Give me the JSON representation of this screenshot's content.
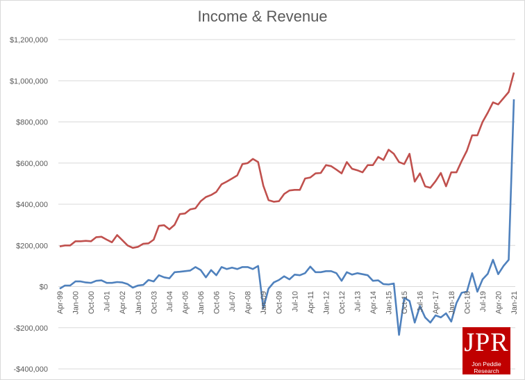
{
  "chart_data": {
    "type": "line",
    "title": "Income & Revenue",
    "xlabel": "",
    "ylabel": "",
    "ylim": [
      -400000,
      1200000
    ],
    "yticks": [
      -400000,
      -200000,
      0,
      200000,
      400000,
      600000,
      800000,
      1000000,
      1200000
    ],
    "ytick_labels": [
      "-$400,000",
      "-$200,000",
      "$0",
      "$200,000",
      "$400,000",
      "$600,000",
      "$800,000",
      "$1,000,000",
      "$1,200,000"
    ],
    "xtick_labels": [
      "Apr-99",
      "Jan-00",
      "Oct-00",
      "Jul-01",
      "Apr-02",
      "Jan-03",
      "Oct-03",
      "Jul-04",
      "Apr-05",
      "Jan-06",
      "Oct-06",
      "Jul-07",
      "Apr-08",
      "Jan-09",
      "Oct-09",
      "Jul-10",
      "Apr-11",
      "Jan-12",
      "Oct-12",
      "Jul-13",
      "Apr-14",
      "Jan-15",
      "Oct-15",
      "Jul-16",
      "Apr-17",
      "Jan-18",
      "Oct-18",
      "Jul-19",
      "Apr-20",
      "Jan-21"
    ],
    "grid": true,
    "series": [
      {
        "color": "#c0504d",
        "values": [
          195000,
          200000,
          200000,
          220000,
          220000,
          222000,
          220000,
          240000,
          242000,
          228000,
          215000,
          250000,
          225000,
          200000,
          188000,
          193000,
          208000,
          210000,
          228000,
          295000,
          298000,
          278000,
          300000,
          352000,
          355000,
          375000,
          380000,
          415000,
          435000,
          445000,
          460000,
          497000,
          510000,
          525000,
          540000,
          595000,
          600000,
          620000,
          605000,
          490000,
          420000,
          412000,
          415000,
          450000,
          467000,
          470000,
          470000,
          525000,
          530000,
          550000,
          552000,
          590000,
          585000,
          568000,
          550000,
          605000,
          572000,
          565000,
          555000,
          590000,
          590000,
          630000,
          615000,
          665000,
          645000,
          605000,
          595000,
          645000,
          510000,
          550000,
          487000,
          480000,
          512000,
          552000,
          487000,
          555000,
          555000,
          610000,
          660000,
          735000,
          735000,
          800000,
          845000,
          895000,
          885000,
          915000,
          945000,
          1040000
        ]
      },
      {
        "color": "#4f81bd",
        "values": [
          -10000,
          5000,
          5000,
          25000,
          25000,
          20000,
          18000,
          28000,
          30000,
          18000,
          18000,
          22000,
          20000,
          12000,
          -5000,
          5000,
          8000,
          32000,
          25000,
          55000,
          45000,
          40000,
          70000,
          72000,
          75000,
          78000,
          95000,
          80000,
          45000,
          80000,
          55000,
          95000,
          85000,
          92000,
          85000,
          95000,
          95000,
          85000,
          100000,
          -105000,
          -10000,
          20000,
          32000,
          50000,
          35000,
          58000,
          55000,
          65000,
          97000,
          70000,
          70000,
          75000,
          75000,
          65000,
          28000,
          70000,
          58000,
          65000,
          60000,
          55000,
          28000,
          30000,
          12000,
          10000,
          15000,
          -235000,
          -55000,
          -70000,
          -175000,
          -95000,
          -150000,
          -175000,
          -140000,
          -150000,
          -130000,
          -170000,
          -80000,
          -30000,
          -25000,
          65000,
          -25000,
          35000,
          62000,
          130000,
          60000,
          100000,
          130000,
          910000
        ]
      }
    ]
  },
  "logo": {
    "text": "JPR",
    "subtext": "Jon Peddie Research"
  }
}
